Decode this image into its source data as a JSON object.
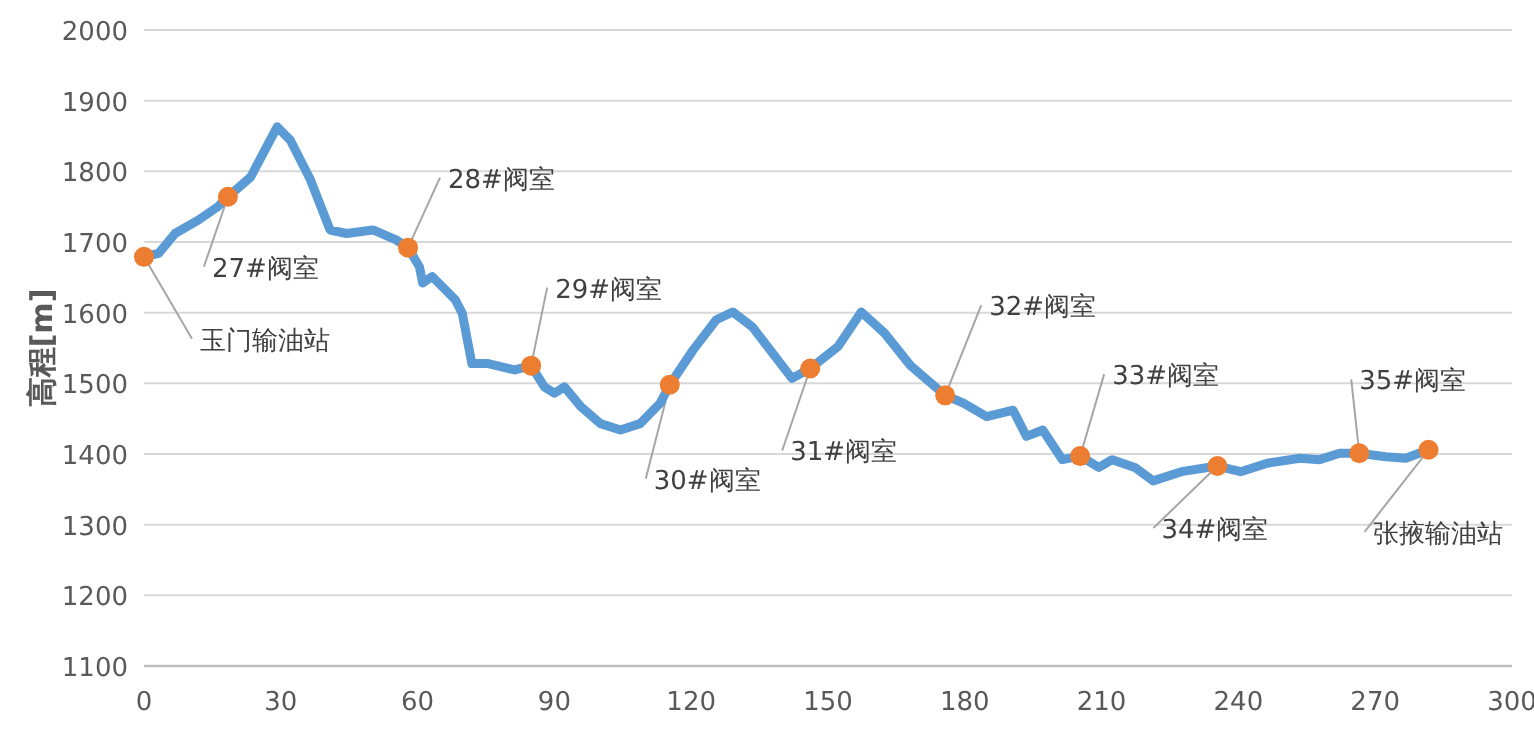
{
  "chart_data": {
    "type": "line",
    "ylabel": "高程[m]",
    "xlim": [
      0,
      300
    ],
    "xticks": [
      0,
      30,
      60,
      90,
      120,
      150,
      180,
      210,
      240,
      270,
      300
    ],
    "ylim": [
      1100,
      2000
    ],
    "yticks": [
      1100,
      1200,
      1300,
      1400,
      1500,
      1600,
      1700,
      1800,
      1900,
      2000
    ],
    "grid": "y",
    "series": [
      {
        "color": "#5b9bd5",
        "marker": "none",
        "line_style": "solid",
        "x": [
          0,
          3.2,
          6.8,
          11.9,
          16.2,
          18.4,
          23.4,
          29.2,
          32.1,
          36.5,
          40.8,
          44.4,
          50.2,
          55.3,
          57.9,
          60.4,
          61.1,
          63.2,
          68.3,
          69.8,
          71.9,
          75.5,
          81.3,
          84.9,
          87.8,
          90.0,
          92.2,
          95.8,
          100.1,
          104.5,
          108.8,
          113.2,
          115.3,
          120.4,
          125.5,
          129.1,
          133.4,
          142.1,
          146.1,
          152.2,
          157.3,
          162.4,
          168.1,
          175.7,
          179.7,
          184.8,
          190.6,
          193.5,
          197.1,
          201.4,
          205.3,
          209.4,
          212.3,
          217.3,
          221.3,
          227.5,
          235.4,
          240.5,
          246.3,
          253.5,
          257.8,
          262.2,
          266.5,
          272.3,
          276.7,
          281.7
        ],
        "values": [
          1679,
          1684,
          1712,
          1731,
          1750,
          1764,
          1792,
          1863,
          1844,
          1788,
          1717,
          1712,
          1717,
          1703,
          1692,
          1665,
          1642,
          1651,
          1618,
          1599,
          1528,
          1528,
          1519,
          1525,
          1495,
          1486,
          1495,
          1467,
          1443,
          1434,
          1443,
          1472,
          1498,
          1547,
          1590,
          1601,
          1580,
          1507,
          1521,
          1552,
          1601,
          1571,
          1525,
          1483,
          1472,
          1453,
          1462,
          1425,
          1434,
          1392,
          1397,
          1381,
          1392,
          1381,
          1362,
          1375,
          1383,
          1375,
          1387,
          1394,
          1392,
          1401,
          1401,
          1396,
          1394,
          1406
        ]
      },
      {
        "type": "scatter",
        "color": "#ed7d31",
        "marker": "circle",
        "x": [
          0,
          18.4,
          57.9,
          84.9,
          115.3,
          146.1,
          175.7,
          205.3,
          235.4,
          266.5,
          281.7
        ],
        "values": [
          1679,
          1764,
          1692,
          1525,
          1498,
          1521,
          1483,
          1397,
          1383,
          1401,
          1406
        ]
      }
    ],
    "annotations": [
      {
        "text": "玉门输油站",
        "x": 0,
        "y": 1679
      },
      {
        "text": "27#阀室",
        "x": 18.4,
        "y": 1764
      },
      {
        "text": "28#阀室",
        "x": 57.9,
        "y": 1692
      },
      {
        "text": "29#阀室",
        "x": 84.9,
        "y": 1525
      },
      {
        "text": "30#阀室",
        "x": 115.3,
        "y": 1498
      },
      {
        "text": "31#阀室",
        "x": 146.1,
        "y": 1521
      },
      {
        "text": "32#阀室",
        "x": 175.7,
        "y": 1483
      },
      {
        "text": "33#阀室",
        "x": 205.3,
        "y": 1397
      },
      {
        "text": "34#阀室",
        "x": 235.4,
        "y": 1383
      },
      {
        "text": "35#阀室",
        "x": 266.5,
        "y": 1401
      },
      {
        "text": "张掖输油站",
        "x": 281.7,
        "y": 1406
      }
    ]
  }
}
